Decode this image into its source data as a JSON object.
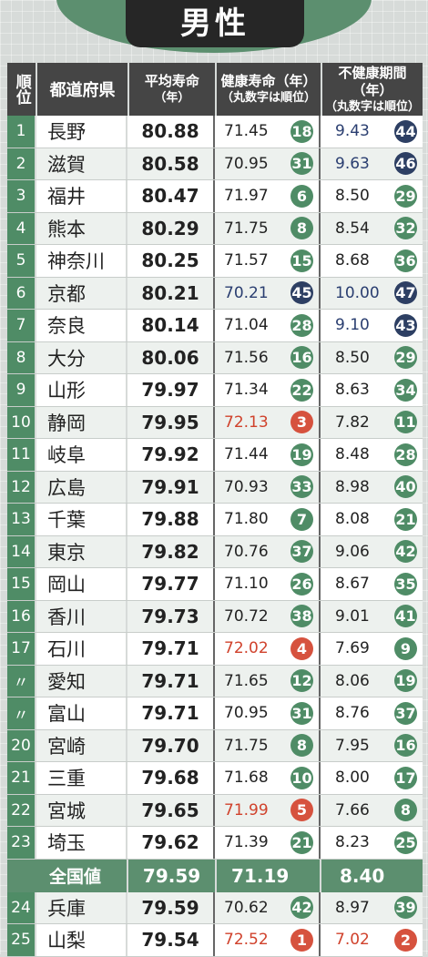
{
  "title": "男性",
  "headers": {
    "rank": "順位",
    "pref": "都道府県",
    "avg_main": "平均寿命",
    "avg_sub": "（年）",
    "healthy_main": "健康寿命（年）",
    "healthy_sub": "（丸数字は順位）",
    "unhealthy_main": "不健康期間（年）",
    "unhealthy_sub": "（丸数字は順位）"
  },
  "colors": {
    "green": "#4f8c66",
    "navy": "#2d3f63",
    "red": "#d6523e"
  },
  "rows_top": [
    {
      "rank": "1",
      "pref": "長野",
      "avg": "80.88",
      "hv": "71.45",
      "hr": "18",
      "hc": "g",
      "uv": "9.43",
      "ur": "44",
      "uc": "n"
    },
    {
      "rank": "2",
      "pref": "滋賀",
      "avg": "80.58",
      "hv": "70.95",
      "hr": "31",
      "hc": "g",
      "uv": "9.63",
      "ur": "46",
      "uc": "n"
    },
    {
      "rank": "3",
      "pref": "福井",
      "avg": "80.47",
      "hv": "71.97",
      "hr": "6",
      "hc": "g",
      "uv": "8.50",
      "ur": "29",
      "uc": "g"
    },
    {
      "rank": "4",
      "pref": "熊本",
      "avg": "80.29",
      "hv": "71.75",
      "hr": "8",
      "hc": "g",
      "uv": "8.54",
      "ur": "32",
      "uc": "g"
    },
    {
      "rank": "5",
      "pref": "神奈川",
      "avg": "80.25",
      "hv": "71.57",
      "hr": "15",
      "hc": "g",
      "uv": "8.68",
      "ur": "36",
      "uc": "g"
    },
    {
      "rank": "6",
      "pref": "京都",
      "avg": "80.21",
      "hv": "70.21",
      "hr": "45",
      "hc": "n",
      "uv": "10.00",
      "ur": "47",
      "uc": "n"
    },
    {
      "rank": "7",
      "pref": "奈良",
      "avg": "80.14",
      "hv": "71.04",
      "hr": "28",
      "hc": "g",
      "uv": "9.10",
      "ur": "43",
      "uc": "n"
    },
    {
      "rank": "8",
      "pref": "大分",
      "avg": "80.06",
      "hv": "71.56",
      "hr": "16",
      "hc": "g",
      "uv": "8.50",
      "ur": "29",
      "uc": "g"
    },
    {
      "rank": "9",
      "pref": "山形",
      "avg": "79.97",
      "hv": "71.34",
      "hr": "22",
      "hc": "g",
      "uv": "8.63",
      "ur": "34",
      "uc": "g"
    },
    {
      "rank": "10",
      "pref": "静岡",
      "avg": "79.95",
      "hv": "72.13",
      "hr": "3",
      "hc": "r",
      "uv": "7.82",
      "ur": "11",
      "uc": "g"
    },
    {
      "rank": "11",
      "pref": "岐阜",
      "avg": "79.92",
      "hv": "71.44",
      "hr": "19",
      "hc": "g",
      "uv": "8.48",
      "ur": "28",
      "uc": "g"
    },
    {
      "rank": "12",
      "pref": "広島",
      "avg": "79.91",
      "hv": "70.93",
      "hr": "33",
      "hc": "g",
      "uv": "8.98",
      "ur": "40",
      "uc": "g"
    },
    {
      "rank": "13",
      "pref": "千葉",
      "avg": "79.88",
      "hv": "71.80",
      "hr": "7",
      "hc": "g",
      "uv": "8.08",
      "ur": "21",
      "uc": "g"
    },
    {
      "rank": "14",
      "pref": "東京",
      "avg": "79.82",
      "hv": "70.76",
      "hr": "37",
      "hc": "g",
      "uv": "9.06",
      "ur": "42",
      "uc": "g"
    },
    {
      "rank": "15",
      "pref": "岡山",
      "avg": "79.77",
      "hv": "71.10",
      "hr": "26",
      "hc": "g",
      "uv": "8.67",
      "ur": "35",
      "uc": "g"
    },
    {
      "rank": "16",
      "pref": "香川",
      "avg": "79.73",
      "hv": "70.72",
      "hr": "38",
      "hc": "g",
      "uv": "9.01",
      "ur": "41",
      "uc": "g"
    },
    {
      "rank": "17",
      "pref": "石川",
      "avg": "79.71",
      "hv": "72.02",
      "hr": "4",
      "hc": "r",
      "uv": "7.69",
      "ur": "9",
      "uc": "g"
    },
    {
      "rank": "〃",
      "pref": "愛知",
      "avg": "79.71",
      "hv": "71.65",
      "hr": "12",
      "hc": "g",
      "uv": "8.06",
      "ur": "19",
      "uc": "g"
    },
    {
      "rank": "〃",
      "pref": "富山",
      "avg": "79.71",
      "hv": "70.95",
      "hr": "31",
      "hc": "g",
      "uv": "8.76",
      "ur": "37",
      "uc": "g"
    },
    {
      "rank": "20",
      "pref": "宮崎",
      "avg": "79.70",
      "hv": "71.75",
      "hr": "8",
      "hc": "g",
      "uv": "7.95",
      "ur": "16",
      "uc": "g"
    },
    {
      "rank": "21",
      "pref": "三重",
      "avg": "79.68",
      "hv": "71.68",
      "hr": "10",
      "hc": "g",
      "uv": "8.00",
      "ur": "17",
      "uc": "g"
    },
    {
      "rank": "22",
      "pref": "宮城",
      "avg": "79.65",
      "hv": "71.99",
      "hr": "5",
      "hc": "r",
      "uv": "7.66",
      "ur": "8",
      "uc": "g"
    },
    {
      "rank": "23",
      "pref": "埼玉",
      "avg": "79.62",
      "hv": "71.39",
      "hr": "21",
      "hc": "g",
      "uv": "8.23",
      "ur": "25",
      "uc": "g"
    }
  ],
  "national": {
    "label": "全国値",
    "avg": "79.59",
    "hv": "71.19",
    "uv": "8.40"
  },
  "rows_bottom": [
    {
      "rank": "24",
      "pref": "兵庫",
      "avg": "79.59",
      "hv": "70.62",
      "hr": "42",
      "hc": "g",
      "uv": "8.97",
      "ur": "39",
      "uc": "g"
    },
    {
      "rank": "25",
      "pref": "山梨",
      "avg": "79.54",
      "hv": "72.52",
      "hr": "1",
      "hc": "r",
      "uv": "7.02",
      "ur": "2",
      "uc": "r"
    }
  ]
}
